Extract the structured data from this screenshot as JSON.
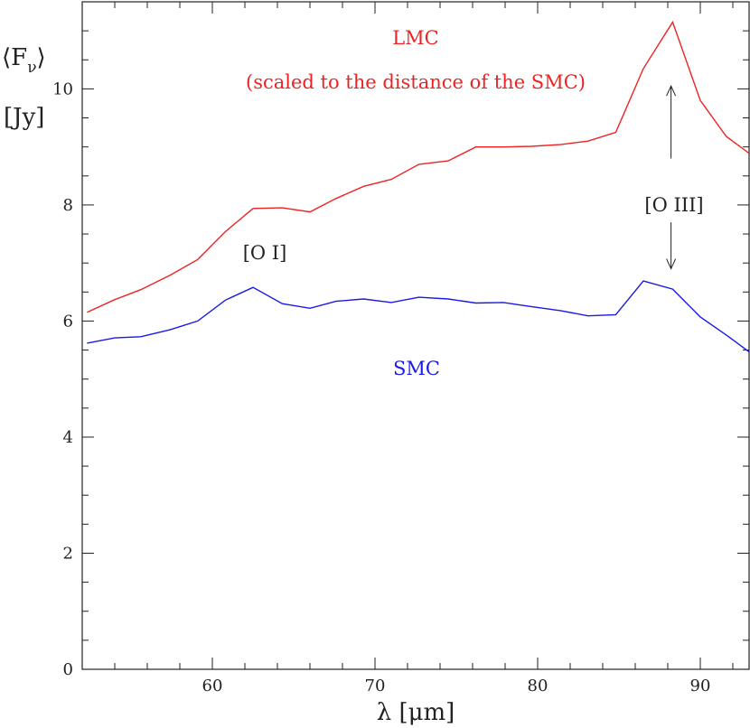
{
  "chart_data": {
    "type": "line",
    "title": "",
    "xlabel": "λ [μm]",
    "ylabel_line1": "⟨F",
    "ylabel_sub": "ν",
    "ylabel_close": "⟩",
    "ylabel_line2": "[Jy]",
    "xlim": [
      52,
      93
    ],
    "ylim": [
      0,
      11.5
    ],
    "x_ticks": [
      60,
      70,
      80,
      90
    ],
    "x_tick_labels": [
      "60",
      "70",
      "80",
      "90"
    ],
    "y_ticks": [
      0,
      2,
      4,
      6,
      8,
      10
    ],
    "y_tick_labels": [
      "0",
      "2",
      "4",
      "6",
      "8",
      "10"
    ],
    "grid": false,
    "series": [
      {
        "name": "LMC",
        "color": "#ee2222",
        "x": [
          52.3,
          54.0,
          55.6,
          57.4,
          59.1,
          60.8,
          62.5,
          64.3,
          66.0,
          67.6,
          69.3,
          71.0,
          72.7,
          74.5,
          76.2,
          77.9,
          79.6,
          81.4,
          83.1,
          84.8,
          86.5,
          88.3,
          90.0,
          91.6,
          93.0
        ],
        "values": [
          6.15,
          6.37,
          6.54,
          6.79,
          7.06,
          7.54,
          7.94,
          7.95,
          7.88,
          8.11,
          8.32,
          8.44,
          8.7,
          8.76,
          9.0,
          9.0,
          9.01,
          9.04,
          9.1,
          9.25,
          10.35,
          11.15,
          9.8,
          9.18,
          8.89
        ]
      },
      {
        "name": "SMC",
        "color": "#1a1ae6",
        "x": [
          52.3,
          54.0,
          55.6,
          57.4,
          59.1,
          60.8,
          62.5,
          64.3,
          66.0,
          67.6,
          69.3,
          71.0,
          72.7,
          74.5,
          76.2,
          77.9,
          79.6,
          81.4,
          83.1,
          84.8,
          86.5,
          88.3,
          90.0,
          91.6,
          93.0
        ],
        "values": [
          5.62,
          5.71,
          5.73,
          5.85,
          6.0,
          6.36,
          6.58,
          6.3,
          6.22,
          6.34,
          6.38,
          6.32,
          6.41,
          6.38,
          6.31,
          6.32,
          6.25,
          6.18,
          6.09,
          6.11,
          6.69,
          6.55,
          6.07,
          5.76,
          5.47
        ]
      }
    ],
    "annotations": {
      "lmc_label": "LMC",
      "lmc_note": "(scaled to the distance of the SMC)",
      "smc_label": "SMC",
      "oi_label": "[O I]",
      "oiii_label": "[O III]",
      "oiii_arrow_x": 88.2,
      "oiii_arrow_up_from": 8.8,
      "oiii_arrow_up_to": 10.05,
      "oiii_arrow_down_from": 7.7,
      "oiii_arrow_down_to": 6.9
    }
  }
}
